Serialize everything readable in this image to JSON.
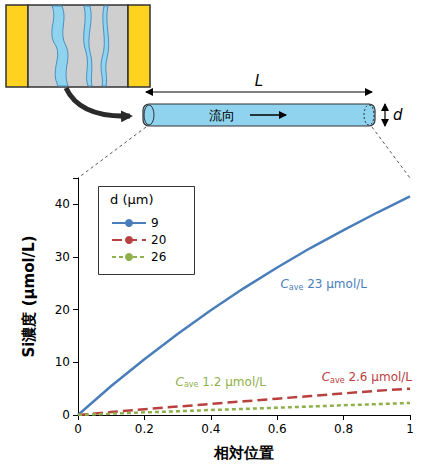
{
  "chart_data": {
    "type": "line",
    "x_label": "相対位置",
    "y_label": "Si濃度 (μmol/L)",
    "x": [
      0,
      0.1,
      0.2,
      0.3,
      0.4,
      0.5,
      0.6,
      0.7,
      0.8,
      0.9,
      1
    ],
    "series": [
      {
        "name": "9",
        "color": "#4a7ebb",
        "line_style": "solid",
        "values": [
          0,
          5.5,
          10.6,
          15.4,
          19.9,
          24.1,
          28.0,
          31.7,
          35.1,
          38.4,
          41.5
        ]
      },
      {
        "name": "20",
        "color": "#b8403e",
        "line_style": "dashed",
        "values": [
          0,
          0.55,
          1.1,
          1.6,
          2.1,
          2.6,
          3.1,
          3.6,
          4.1,
          4.6,
          5.0
        ]
      },
      {
        "name": "26",
        "color": "#8fb04a",
        "line_style": "dotted",
        "values": [
          0,
          0.25,
          0.5,
          0.7,
          0.95,
          1.15,
          1.4,
          1.6,
          1.85,
          2.05,
          2.3
        ]
      }
    ],
    "xlim": [
      0,
      1
    ],
    "xticks": [
      0,
      0.2,
      0.4,
      0.6,
      0.8,
      1
    ],
    "ylim": [
      0,
      45
    ],
    "yticks": [
      0,
      10,
      20,
      30,
      40
    ],
    "grid": false,
    "legend": "upper left",
    "legend_title": "d (μm)",
    "annotations": [
      {
        "series": "9",
        "text": "C",
        "sub": "ave",
        "rest": " 23 μmol/L",
        "x": 0.74,
        "y": 24.8
      },
      {
        "series": "20",
        "text": "C",
        "sub": "ave",
        "rest": " 2.6 μmol/L",
        "x": 0.87,
        "y": 7.2
      },
      {
        "series": "26",
        "text": "C",
        "sub": "ave",
        "rest": " 1.2 μmol/L",
        "x": 0.43,
        "y": 6.3
      }
    ]
  },
  "diagram": {
    "length": "L",
    "flow": "流向",
    "diameter": "d"
  }
}
